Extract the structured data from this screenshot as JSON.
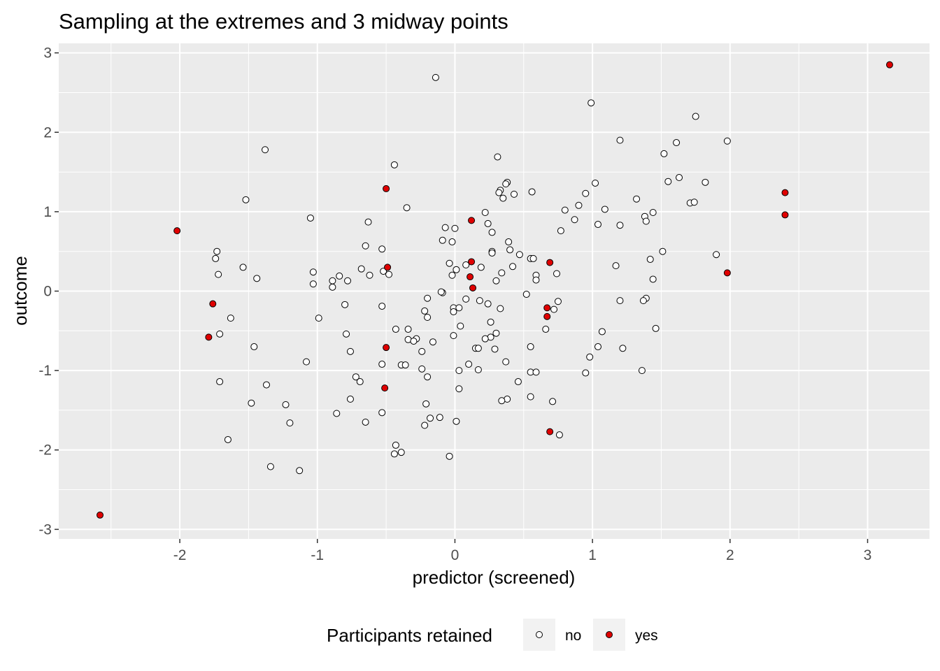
{
  "chart_data": {
    "type": "scatter",
    "title": "Sampling at the extremes and 3 midway points",
    "xlabel": "predictor (screened)",
    "ylabel": "outcome",
    "xlim": [
      -2.88,
      3.45
    ],
    "ylim": [
      -3.12,
      3.12
    ],
    "x_ticks": [
      -2,
      -1,
      0,
      1,
      2,
      3
    ],
    "y_ticks": [
      -3,
      -2,
      -1,
      0,
      1,
      2,
      3
    ],
    "x_tick_labels": [
      "-2",
      "-1",
      "0",
      "1",
      "2",
      "3"
    ],
    "y_tick_labels": [
      "-3",
      "-2",
      "-1",
      "0",
      "1",
      "2",
      "3"
    ],
    "grid": true,
    "legend": {
      "title": "Participants retained",
      "position": "bottom",
      "entries": [
        {
          "label": "no",
          "fill": "#ffffff"
        },
        {
          "label": "yes",
          "fill": "#e00000"
        }
      ]
    },
    "series": [
      {
        "name": "no",
        "fill": "#ffffff",
        "points": [
          [
            -0.14,
            2.69
          ],
          [
            0.99,
            2.37
          ],
          [
            1.75,
            2.2
          ],
          [
            1.98,
            1.89
          ],
          [
            1.2,
            1.9
          ],
          [
            1.61,
            1.87
          ],
          [
            1.52,
            1.73
          ],
          [
            0.31,
            1.69
          ],
          [
            -1.38,
            1.78
          ],
          [
            -0.44,
            1.59
          ],
          [
            1.63,
            1.43
          ],
          [
            1.55,
            1.38
          ],
          [
            1.82,
            1.37
          ],
          [
            1.02,
            1.36
          ],
          [
            0.38,
            1.37
          ],
          [
            0.37,
            1.35
          ],
          [
            0.56,
            1.25
          ],
          [
            0.33,
            1.27
          ],
          [
            0.32,
            1.24
          ],
          [
            0.95,
            1.23
          ],
          [
            0.43,
            1.22
          ],
          [
            0.35,
            1.17
          ],
          [
            1.32,
            1.16
          ],
          [
            1.71,
            1.11
          ],
          [
            1.74,
            1.12
          ],
          [
            -1.52,
            1.15
          ],
          [
            -0.35,
            1.05
          ],
          [
            0.9,
            1.08
          ],
          [
            1.09,
            1.03
          ],
          [
            0.8,
            1.02
          ],
          [
            0.22,
            0.99
          ],
          [
            1.44,
            0.99
          ],
          [
            1.38,
            0.94
          ],
          [
            1.39,
            0.88
          ],
          [
            0.87,
            0.9
          ],
          [
            1.2,
            0.83
          ],
          [
            1.04,
            0.84
          ],
          [
            0.24,
            0.85
          ],
          [
            -1.05,
            0.92
          ],
          [
            -0.63,
            0.87
          ],
          [
            -0.07,
            0.8
          ],
          [
            0.0,
            0.79
          ],
          [
            0.77,
            0.76
          ],
          [
            0.27,
            0.74
          ],
          [
            -0.09,
            0.64
          ],
          [
            -0.02,
            0.62
          ],
          [
            0.39,
            0.62
          ],
          [
            -0.65,
            0.57
          ],
          [
            0.4,
            0.52
          ],
          [
            -0.53,
            0.53
          ],
          [
            1.51,
            0.5
          ],
          [
            0.27,
            0.5
          ],
          [
            0.27,
            0.48
          ],
          [
            0.47,
            0.46
          ],
          [
            1.9,
            0.46
          ],
          [
            -1.73,
            0.5
          ],
          [
            -1.74,
            0.41
          ],
          [
            0.55,
            0.41
          ],
          [
            0.57,
            0.41
          ],
          [
            1.42,
            0.4
          ],
          [
            -0.04,
            0.35
          ],
          [
            0.08,
            0.33
          ],
          [
            0.42,
            0.31
          ],
          [
            1.17,
            0.32
          ],
          [
            0.19,
            0.3
          ],
          [
            -1.54,
            0.3
          ],
          [
            -0.68,
            0.28
          ],
          [
            0.01,
            0.27
          ],
          [
            -0.52,
            0.25
          ],
          [
            -1.03,
            0.24
          ],
          [
            0.34,
            0.23
          ],
          [
            -0.62,
            0.2
          ],
          [
            0.74,
            0.22
          ],
          [
            -0.48,
            0.21
          ],
          [
            -1.72,
            0.21
          ],
          [
            -0.02,
            0.2
          ],
          [
            0.59,
            0.2
          ],
          [
            -0.84,
            0.19
          ],
          [
            -0.89,
            0.13
          ],
          [
            -0.78,
            0.13
          ],
          [
            1.44,
            0.15
          ],
          [
            -1.44,
            0.16
          ],
          [
            0.59,
            0.14
          ],
          [
            0.3,
            0.13
          ],
          [
            -1.03,
            0.09
          ],
          [
            -0.89,
            0.05
          ],
          [
            -0.09,
            -0.02
          ],
          [
            -0.1,
            -0.01
          ],
          [
            0.52,
            -0.04
          ],
          [
            0.08,
            -0.1
          ],
          [
            -0.2,
            -0.09
          ],
          [
            0.18,
            -0.12
          ],
          [
            1.39,
            -0.09
          ],
          [
            0.75,
            -0.13
          ],
          [
            1.2,
            -0.12
          ],
          [
            1.37,
            -0.12
          ],
          [
            -0.8,
            -0.17
          ],
          [
            0.24,
            -0.16
          ],
          [
            -0.53,
            -0.19
          ],
          [
            -0.01,
            -0.21
          ],
          [
            0.03,
            -0.21
          ],
          [
            0.33,
            -0.22
          ],
          [
            0.72,
            -0.23
          ],
          [
            -0.22,
            -0.25
          ],
          [
            -0.01,
            -0.26
          ],
          [
            -0.2,
            -0.33
          ],
          [
            -1.63,
            -0.34
          ],
          [
            -0.99,
            -0.34
          ],
          [
            0.26,
            -0.39
          ],
          [
            0.04,
            -0.44
          ],
          [
            1.46,
            -0.47
          ],
          [
            -0.34,
            -0.48
          ],
          [
            0.66,
            -0.48
          ],
          [
            -0.43,
            -0.48
          ],
          [
            1.07,
            -0.51
          ],
          [
            0.3,
            -0.53
          ],
          [
            -1.71,
            -0.54
          ],
          [
            -0.79,
            -0.54
          ],
          [
            -0.01,
            -0.56
          ],
          [
            0.26,
            -0.58
          ],
          [
            0.22,
            -0.6
          ],
          [
            -0.28,
            -0.6
          ],
          [
            -0.34,
            -0.61
          ],
          [
            -0.3,
            -0.63
          ],
          [
            -0.16,
            -0.64
          ],
          [
            -1.46,
            -0.7
          ],
          [
            0.55,
            -0.7
          ],
          [
            1.04,
            -0.7
          ],
          [
            0.15,
            -0.72
          ],
          [
            0.17,
            -0.72
          ],
          [
            1.22,
            -0.72
          ],
          [
            0.29,
            -0.73
          ],
          [
            -0.76,
            -0.76
          ],
          [
            -0.24,
            -0.76
          ],
          [
            0.98,
            -0.83
          ],
          [
            0.37,
            -0.89
          ],
          [
            -1.08,
            -0.89
          ],
          [
            -0.53,
            -0.92
          ],
          [
            0.1,
            -0.92
          ],
          [
            -0.39,
            -0.93
          ],
          [
            -0.36,
            -0.93
          ],
          [
            -0.24,
            -0.98
          ],
          [
            0.17,
            -0.99
          ],
          [
            0.03,
            -1.0
          ],
          [
            1.36,
            -1.0
          ],
          [
            0.55,
            -1.02
          ],
          [
            0.59,
            -1.02
          ],
          [
            0.95,
            -1.03
          ],
          [
            -0.72,
            -1.08
          ],
          [
            -0.2,
            -1.08
          ],
          [
            -0.69,
            -1.14
          ],
          [
            0.46,
            -1.14
          ],
          [
            -1.71,
            -1.14
          ],
          [
            -1.37,
            -1.18
          ],
          [
            0.03,
            -1.23
          ],
          [
            -0.76,
            -1.36
          ],
          [
            0.55,
            -1.33
          ],
          [
            0.38,
            -1.36
          ],
          [
            0.34,
            -1.38
          ],
          [
            0.71,
            -1.39
          ],
          [
            -1.48,
            -1.41
          ],
          [
            -0.21,
            -1.42
          ],
          [
            -1.23,
            -1.43
          ],
          [
            -0.53,
            -1.53
          ],
          [
            -0.86,
            -1.54
          ],
          [
            -0.18,
            -1.6
          ],
          [
            -0.11,
            -1.59
          ],
          [
            0.01,
            -1.64
          ],
          [
            -1.2,
            -1.66
          ],
          [
            -0.65,
            -1.65
          ],
          [
            -0.22,
            -1.69
          ],
          [
            0.76,
            -1.81
          ],
          [
            -1.65,
            -1.87
          ],
          [
            -0.43,
            -1.94
          ],
          [
            -0.39,
            -2.03
          ],
          [
            -0.44,
            -2.05
          ],
          [
            -0.04,
            -2.08
          ],
          [
            -1.34,
            -2.21
          ],
          [
            -1.13,
            -2.26
          ]
        ]
      },
      {
        "name": "yes",
        "fill": "#e00000",
        "points": [
          [
            3.16,
            2.85
          ],
          [
            -0.5,
            1.29
          ],
          [
            2.4,
            1.24
          ],
          [
            2.4,
            0.96
          ],
          [
            -2.02,
            0.76
          ],
          [
            0.12,
            0.89
          ],
          [
            0.69,
            0.36
          ],
          [
            0.12,
            0.37
          ],
          [
            -0.49,
            0.3
          ],
          [
            1.98,
            0.23
          ],
          [
            0.11,
            0.18
          ],
          [
            0.13,
            0.04
          ],
          [
            -1.76,
            -0.16
          ],
          [
            0.67,
            -0.21
          ],
          [
            0.67,
            -0.32
          ],
          [
            -1.79,
            -0.58
          ],
          [
            -0.5,
            -0.71
          ],
          [
            -0.51,
            -1.22
          ],
          [
            0.69,
            -1.77
          ],
          [
            -2.58,
            -2.82
          ]
        ]
      }
    ]
  }
}
